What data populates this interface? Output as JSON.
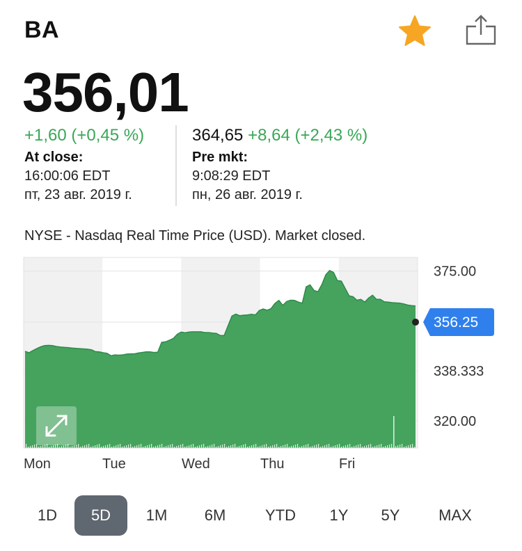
{
  "header": {
    "ticker": "BA",
    "favorite_icon": "star-icon",
    "share_icon": "share-icon",
    "accent": "#f6a623"
  },
  "quote": {
    "price": "356,01"
  },
  "close": {
    "change": "+1,60 (+0,45 %)",
    "label": "At close:",
    "time": "16:00:06 EDT",
    "date": "пт, 23 авг. 2019 г."
  },
  "premarket": {
    "price": "364,65",
    "change": "+8,64 (+2,43 %)",
    "label": "Pre mkt:",
    "time": "9:08:29 EDT",
    "date": "пн, 26 авг. 2019 г."
  },
  "source_line": "NYSE - Nasdaq Real Time Price (USD). Market closed.",
  "chart_data": {
    "type": "area",
    "x_ticks": [
      "Mon",
      "Tue",
      "Wed",
      "Thu",
      "Fri"
    ],
    "y_ticks": [
      "375.00",
      "338.333",
      "320.00"
    ],
    "y_range": [
      310,
      380
    ],
    "current_label": "356.25",
    "current_value": 356.25,
    "expand_icon": "expand-icon",
    "color": "#45a35e",
    "series": [
      345.5,
      345,
      345.8,
      346.5,
      347.2,
      347.6,
      347.7,
      347.6,
      347.3,
      347.1,
      347,
      346.9,
      346.7,
      346.6,
      346.5,
      346.4,
      346.3,
      346.1,
      345.4,
      345.3,
      345,
      344.8,
      343.9,
      344.2,
      344.1,
      344.2,
      344.5,
      344.6,
      344.6,
      344.9,
      345.1,
      345.3,
      345.3,
      345.1,
      345.2,
      348.8,
      349,
      349.6,
      350.3,
      351.8,
      352.6,
      352.3,
      352.6,
      352.7,
      352.7,
      352.7,
      352.4,
      352.4,
      352.2,
      352.1,
      351.3,
      351.3,
      354.9,
      358.5,
      359.2,
      358.6,
      358.8,
      358.9,
      359.1,
      358.9,
      360.5,
      361.1,
      360.6,
      361.2,
      363.1,
      364.2,
      362.4,
      363.8,
      364.3,
      364.2,
      363.6,
      363.2,
      369.2,
      369.9,
      367.9,
      367.4,
      370,
      373.6,
      375.2,
      374.5,
      371.5,
      371.3,
      368.6,
      365.9,
      365.6,
      364.3,
      364.6,
      363.6,
      365.1,
      366.1,
      364.6,
      364.6,
      363.7,
      363.6,
      363.4,
      363.3,
      363.2,
      362.9,
      362.5,
      362.3,
      362.2
    ]
  },
  "ranges": {
    "items": [
      "1D",
      "5D",
      "1M",
      "6M",
      "YTD",
      "1Y",
      "5Y",
      "MAX"
    ],
    "active": "5D"
  }
}
